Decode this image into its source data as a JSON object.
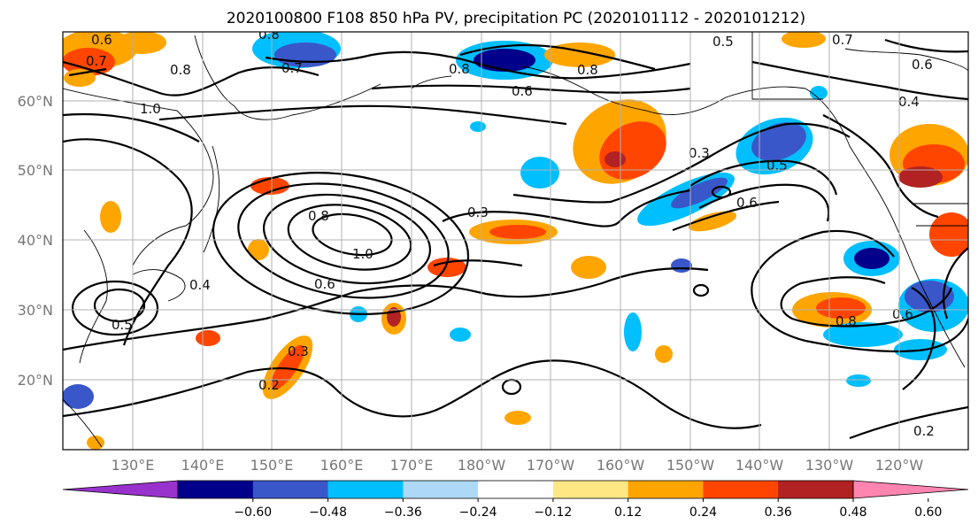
{
  "title": "2020100800 F108 850 hPa PV, precipitation PC (2020101112 - 2020101212)",
  "lat_labels": [
    "60°N",
    "50°N",
    "40°N",
    "30°N",
    "20°N"
  ],
  "lon_labels": [
    "130°E",
    "140°E",
    "150°E",
    "160°E",
    "170°E",
    "180°W",
    "170°W",
    "160°W",
    "150°W",
    "140°W",
    "130°W",
    "120°W"
  ],
  "colorbar": {
    "colors": [
      "#9932cc",
      "#00008b",
      "#3a57c9",
      "#00bfff",
      "#add8f6",
      "#ffffff",
      "#ffe784",
      "#ffa500",
      "#ff4500",
      "#b22222",
      "#ff85b0"
    ],
    "tick_labels": [
      "−0.60",
      "−0.48",
      "−0.36",
      "−0.24",
      "−0.12",
      "0.12",
      "0.24",
      "0.36",
      "0.48",
      "0.60"
    ]
  },
  "contour_labels": [
    "0.6",
    "0.7",
    "0.8",
    "1.0",
    "0.8",
    "0.7",
    "0.8",
    "0.6",
    "0.5",
    "0.7",
    "0.6",
    "0.4",
    "0.8",
    "0.4",
    "0.5",
    "0.8",
    "1.0",
    "0.6",
    "0.3",
    "0.3",
    "0.5",
    "0.6",
    "0.3",
    "0.2",
    "0.8",
    "0.2",
    "0.6"
  ]
}
